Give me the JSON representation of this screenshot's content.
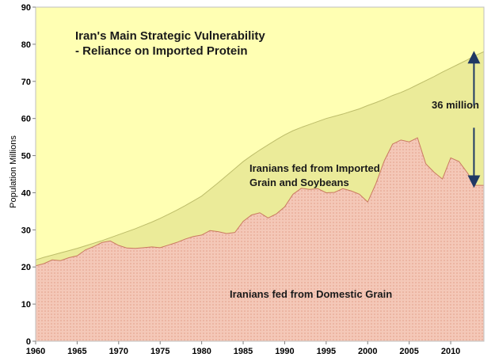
{
  "chart_data": {
    "type": "area",
    "title": [
      "Iran's Main Strategic Vulnerability",
      "- Reliance on Imported Protein"
    ],
    "ylabel": "Population Millions",
    "xlabel": "",
    "xlim": [
      1960,
      2014
    ],
    "ylim": [
      0,
      90
    ],
    "x_ticks": [
      1960,
      1965,
      1970,
      1975,
      1980,
      1985,
      1990,
      1995,
      2000,
      2005,
      2010
    ],
    "y_ticks": [
      0,
      10,
      20,
      30,
      40,
      50,
      60,
      70,
      80,
      90
    ],
    "grid": false,
    "colors": {
      "plot_background": "#ffffb3",
      "population_fill": "#ebeb99",
      "domestic_fill": "#f4c8b8",
      "domestic_dots": "#d9866a",
      "arrow": "#1f3864"
    },
    "x": [
      1960,
      1961,
      1962,
      1963,
      1964,
      1965,
      1966,
      1967,
      1968,
      1969,
      1970,
      1971,
      1972,
      1973,
      1974,
      1975,
      1976,
      1977,
      1978,
      1979,
      1980,
      1981,
      1982,
      1983,
      1984,
      1985,
      1986,
      1987,
      1988,
      1989,
      1990,
      1991,
      1992,
      1993,
      1994,
      1995,
      1996,
      1997,
      1998,
      1999,
      2000,
      2001,
      2002,
      2003,
      2004,
      2005,
      2006,
      2007,
      2008,
      2009,
      2010,
      2011,
      2012,
      2013,
      2014
    ],
    "series": [
      {
        "name": "",
        "values": [
          21.9,
          22.6,
          23.2,
          23.8,
          24.4,
          25.0,
          25.7,
          26.4,
          27.1,
          27.9,
          28.7,
          29.5,
          30.3,
          31.2,
          32.1,
          33.1,
          34.2,
          35.3,
          36.5,
          37.8,
          39.1,
          40.9,
          42.7,
          44.6,
          46.5,
          48.4,
          50.0,
          51.5,
          52.9,
          54.3,
          55.6,
          56.7,
          57.6,
          58.4,
          59.2,
          60.0,
          60.6,
          61.2,
          61.9,
          62.6,
          63.5,
          64.3,
          65.2,
          66.2,
          67.0,
          68.0,
          69.1,
          70.2,
          71.3,
          72.5,
          73.6,
          74.7,
          75.8,
          77.0,
          78.0
        ]
      },
      {
        "name": "",
        "values": [
          20.3,
          20.9,
          21.9,
          21.7,
          22.5,
          23.0,
          24.6,
          25.5,
          26.6,
          27.0,
          25.8,
          25.1,
          25.0,
          25.2,
          25.4,
          25.2,
          25.9,
          26.6,
          27.5,
          28.2,
          28.6,
          29.8,
          29.5,
          29.0,
          29.3,
          32.3,
          34.0,
          34.6,
          33.2,
          34.3,
          36.2,
          39.6,
          41.2,
          40.9,
          41.1,
          40.0,
          40.1,
          41.1,
          40.5,
          39.6,
          37.5,
          42.5,
          48.6,
          53.1,
          54.2,
          53.7,
          54.8,
          47.8,
          45.5,
          43.7,
          49.4,
          48.4,
          45.4,
          42.0,
          42.0
        ]
      }
    ],
    "annotations": {
      "imported_label": [
        "Iranians fed from Imported",
        "Grain and Soybeans"
      ],
      "domestic_label": "Iranians fed from Domestic Grain",
      "gap_label": "36 million"
    }
  }
}
